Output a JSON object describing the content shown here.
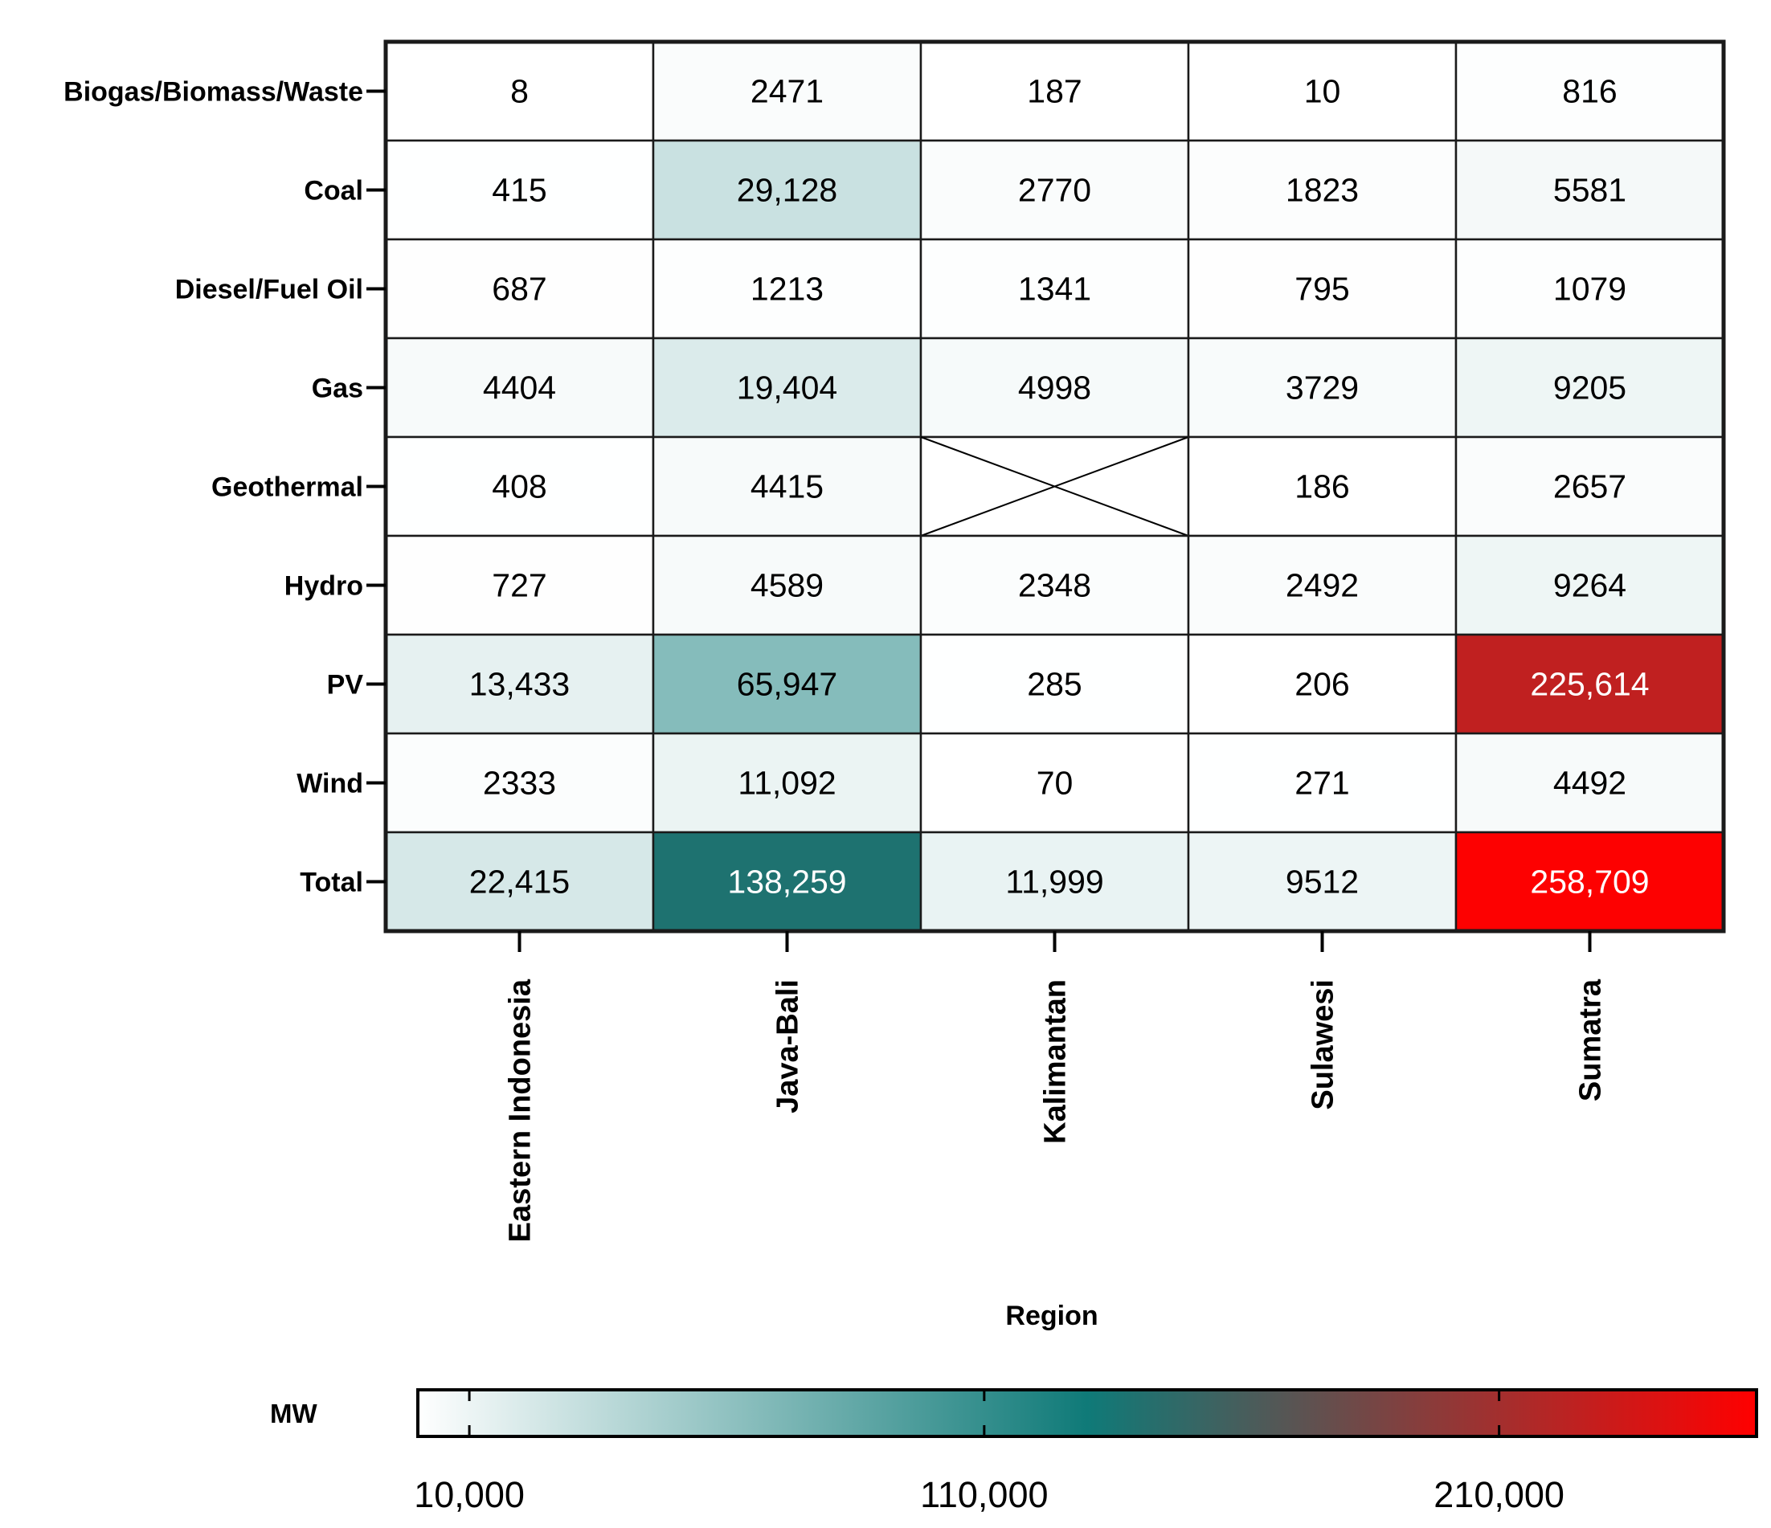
{
  "chart_data": {
    "type": "heatmap",
    "title": "",
    "xlabel": "Region",
    "ylabel": "",
    "x_categories": [
      "Eastern Indonesia",
      "Java-Bali",
      "Kalimantan",
      "Sulawesi",
      "Sumatra"
    ],
    "y_categories": [
      "Biogas/Biomass/Waste",
      "Coal",
      "Diesel/Fuel Oil",
      "Gas",
      "Geothermal",
      "Hydro",
      "PV",
      "Wind",
      "Total"
    ],
    "values": [
      [
        8,
        2471,
        187,
        10,
        816
      ],
      [
        415,
        29128,
        2770,
        1823,
        5581
      ],
      [
        687,
        1213,
        1341,
        795,
        1079
      ],
      [
        4404,
        19404,
        4998,
        3729,
        9205
      ],
      [
        408,
        4415,
        null,
        186,
        2657
      ],
      [
        727,
        4589,
        2348,
        2492,
        9264
      ],
      [
        13433,
        65947,
        285,
        206,
        225614
      ],
      [
        2333,
        11092,
        70,
        271,
        4492
      ],
      [
        22415,
        138259,
        11999,
        9512,
        258709
      ]
    ],
    "value_labels": [
      [
        "8",
        "2471",
        "187",
        "10",
        "816"
      ],
      [
        "415",
        "29,128",
        "2770",
        "1823",
        "5581"
      ],
      [
        "687",
        "1213",
        "1341",
        "795",
        "1079"
      ],
      [
        "4404",
        "19,404",
        "4998",
        "3729",
        "9205"
      ],
      [
        "408",
        "4415",
        "",
        "186",
        "2657"
      ],
      [
        "727",
        "4589",
        "2348",
        "2492",
        "9264"
      ],
      [
        "13,433",
        "65,947",
        "285",
        "206",
        "225,614"
      ],
      [
        "2333",
        "11,092",
        "70",
        "271",
        "4492"
      ],
      [
        "22,415",
        "138,259",
        "11,999",
        "9512",
        "258,709"
      ]
    ],
    "colorbar": {
      "label": "MW",
      "range": [
        0,
        260000
      ],
      "ticks": [
        10000,
        110000,
        210000
      ],
      "tick_labels": [
        "10,000",
        "110,000",
        "210,000"
      ],
      "colors": [
        "#ffffff",
        "#0f7a78",
        "#ff0000"
      ]
    },
    "missing_marker": "cross"
  }
}
